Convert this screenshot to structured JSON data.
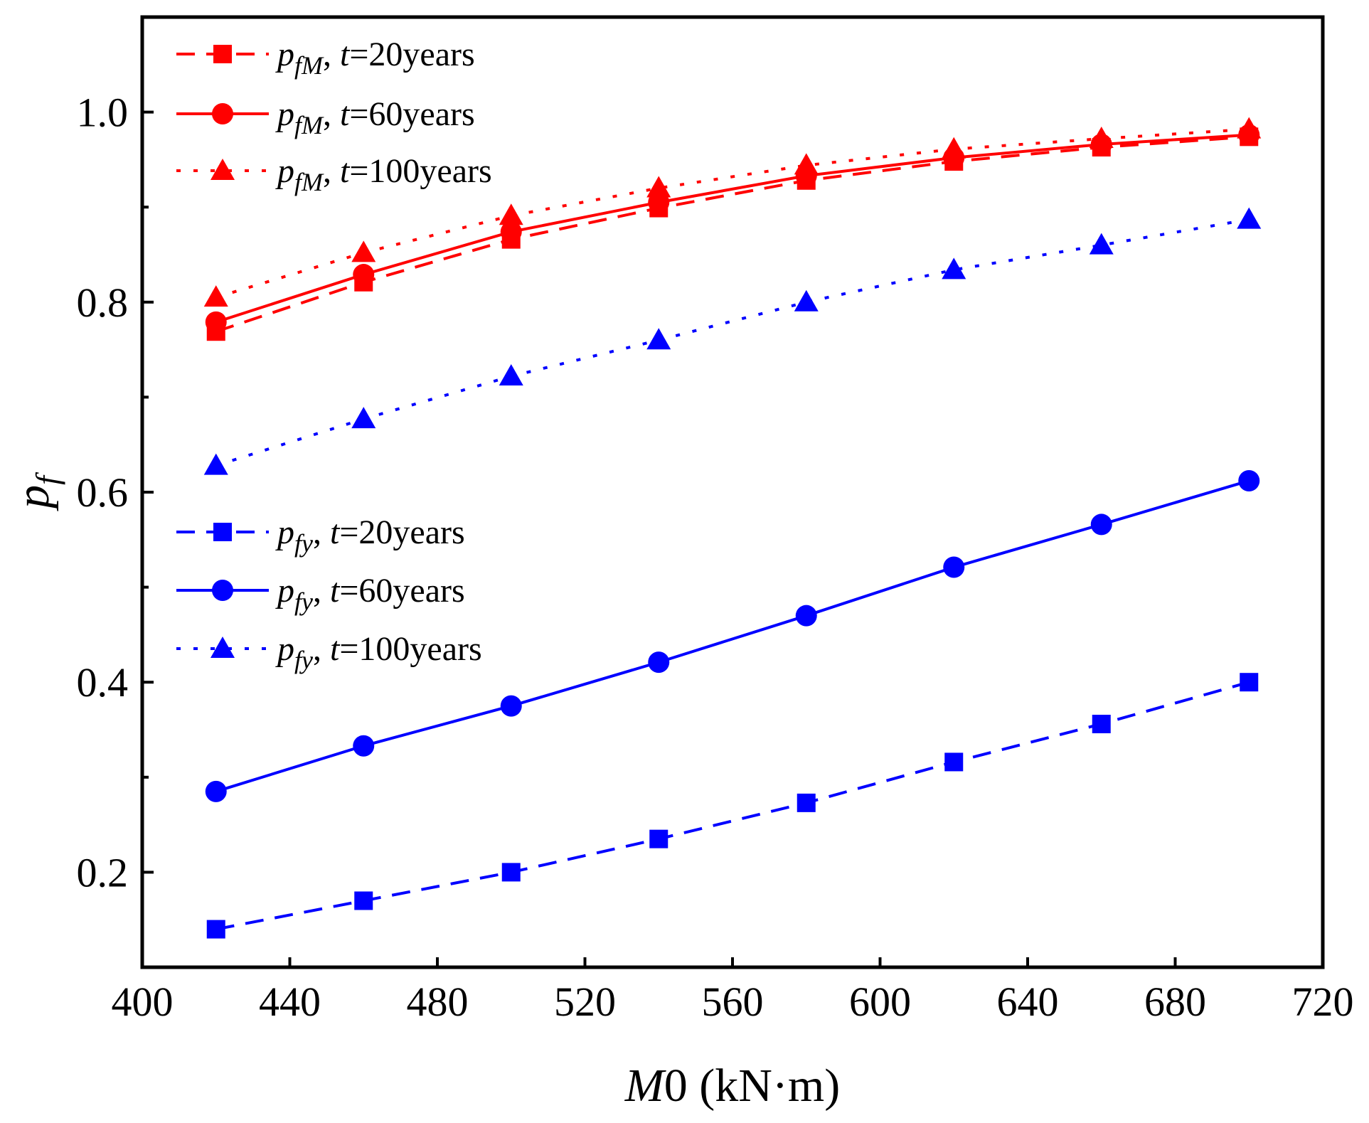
{
  "chart_data": {
    "type": "line",
    "xlabel": {
      "italic": "M",
      "rest": "0 (kN·m)"
    },
    "ylabel": {
      "main": "p",
      "sub": "f"
    },
    "xlim": [
      400,
      720
    ],
    "ylim": [
      0.1,
      1.1
    ],
    "x_ticks": [
      400,
      440,
      480,
      520,
      560,
      600,
      640,
      680,
      720
    ],
    "x_tick_labels": [
      "400",
      "440",
      "480",
      "520",
      "560",
      "600",
      "640",
      "680",
      "720"
    ],
    "y_ticks": [
      0.2,
      0.4,
      0.6,
      0.8,
      1.0
    ],
    "y_tick_labels": [
      "0.2",
      "0.4",
      "0.6",
      "0.8",
      "1.0"
    ],
    "y_minor_ticks": [
      0.3,
      0.5,
      0.7,
      0.9
    ],
    "x": [
      420,
      460,
      500,
      540,
      580,
      620,
      660,
      700
    ],
    "grid": false,
    "legend_placement": [
      "top-left",
      "middle-left"
    ],
    "colors": {
      "red": "#ff0000",
      "blue": "#0000ff"
    },
    "series": [
      {
        "sym": "fM",
        "t": "=20years",
        "color": "#ff0000",
        "marker": "square",
        "dash": "dash",
        "values": [
          0.769,
          0.821,
          0.866,
          0.899,
          0.928,
          0.948,
          0.963,
          0.974
        ]
      },
      {
        "sym": "fM",
        "t": "=60years",
        "color": "#ff0000",
        "marker": "circle",
        "dash": "solid",
        "values": [
          0.779,
          0.829,
          0.874,
          0.905,
          0.933,
          0.952,
          0.966,
          0.976
        ]
      },
      {
        "sym": "fM",
        "t": "=100years",
        "color": "#ff0000",
        "marker": "triangle",
        "dash": "dot",
        "values": [
          0.805,
          0.852,
          0.891,
          0.92,
          0.944,
          0.961,
          0.972,
          0.982
        ]
      },
      {
        "sym": "fy",
        "t": "=20years",
        "color": "#0000ff",
        "marker": "square",
        "dash": "dash",
        "values": [
          0.14,
          0.17,
          0.2,
          0.235,
          0.273,
          0.316,
          0.356,
          0.4
        ]
      },
      {
        "sym": "fy",
        "t": "=60years",
        "color": "#0000ff",
        "marker": "circle",
        "dash": "solid",
        "values": [
          0.285,
          0.333,
          0.375,
          0.421,
          0.47,
          0.521,
          0.566,
          0.612
        ]
      },
      {
        "sym": "fy",
        "t": "=100years",
        "color": "#0000ff",
        "marker": "triangle",
        "dash": "dot",
        "values": [
          0.628,
          0.677,
          0.722,
          0.76,
          0.8,
          0.834,
          0.86,
          0.887
        ]
      }
    ]
  }
}
